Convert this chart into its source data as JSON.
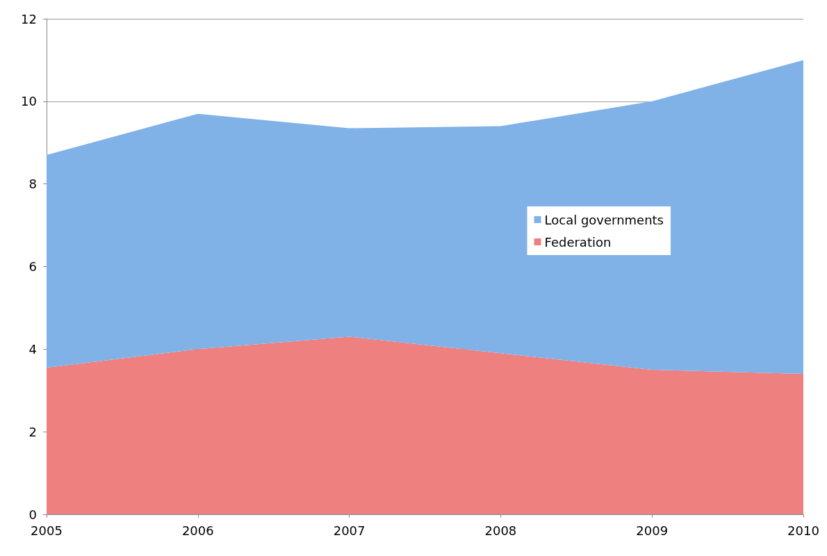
{
  "chart_data": {
    "type": "area",
    "stacked": true,
    "categories": [
      "2005",
      "2006",
      "2007",
      "2008",
      "2009",
      "2010"
    ],
    "series": [
      {
        "name": "Federation",
        "color": "#ee8080",
        "values": [
          3.55,
          4.0,
          4.3,
          3.9,
          3.5,
          3.4
        ]
      },
      {
        "name": "Local governments",
        "color": "#80b2e8",
        "values": [
          5.15,
          5.7,
          5.05,
          5.5,
          6.5,
          7.6
        ]
      }
    ],
    "ylim": [
      0,
      12
    ],
    "yticks": [
      0,
      2,
      4,
      6,
      8,
      10,
      12
    ],
    "grid": "y",
    "legend": "right"
  }
}
